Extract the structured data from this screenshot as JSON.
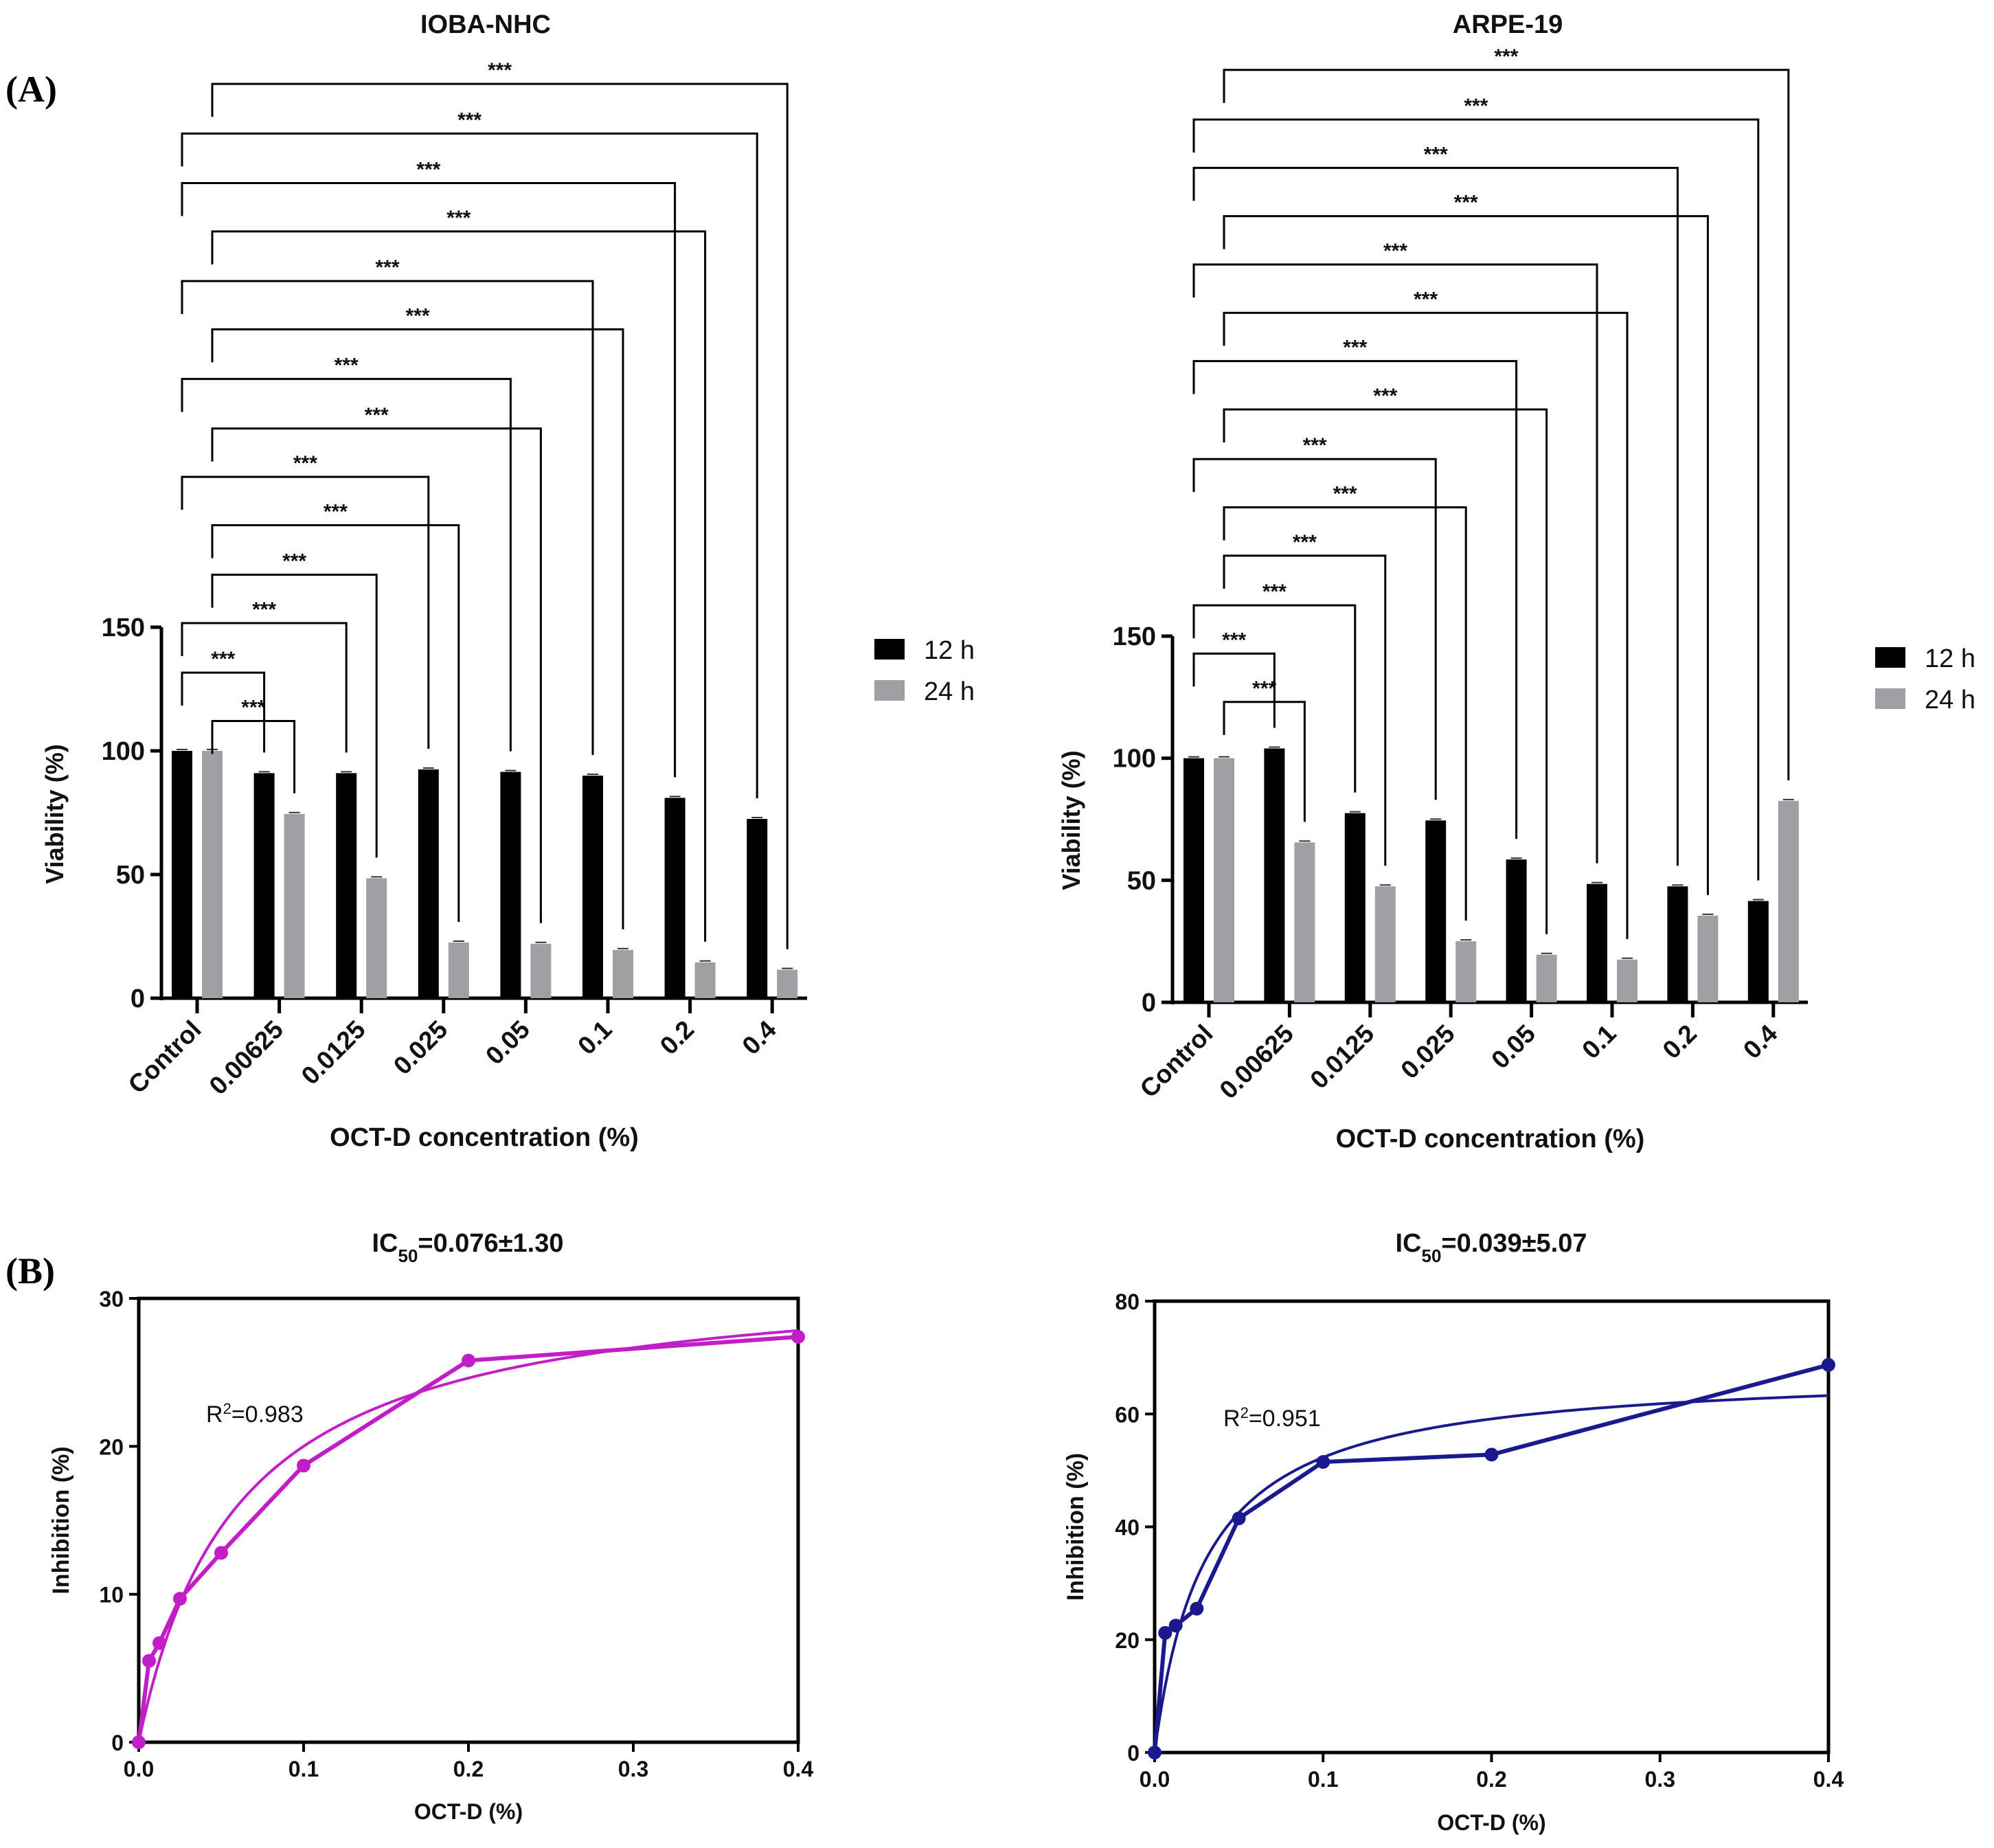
{
  "panel_labels": [
    "(A)",
    "(B)"
  ],
  "chart_data": [
    {
      "type": "bar",
      "title": "IOBA-NHC",
      "xlabel": "OCT-D concentration (%)",
      "ylabel": "Viability (%)",
      "ylim": [
        0,
        150
      ],
      "yticks": [
        "0",
        "50",
        "100",
        "150"
      ],
      "categories": [
        "Control",
        "0.00625",
        "0.0125",
        "0.025",
        "0.05",
        "0.1",
        "0.2",
        "0.4"
      ],
      "legend_position": "right",
      "series": [
        {
          "name": "12 h",
          "color": "#000000",
          "values": [
            100,
            91,
            91,
            92.5,
            91.5,
            90,
            81,
            72.5
          ]
        },
        {
          "name": "24 h",
          "color": "#a0a0a4",
          "values": [
            100,
            74.5,
            48.5,
            22.5,
            22,
            19.5,
            14.5,
            11.5
          ]
        }
      ],
      "significance_label": "***",
      "comparisons": [
        {
          "series": "24 h",
          "vs": "0.00625"
        },
        {
          "series": "12 h",
          "vs": "0.00625"
        },
        {
          "series": "12 h",
          "vs": "0.0125"
        },
        {
          "series": "24 h",
          "vs": "0.0125"
        },
        {
          "series": "24 h",
          "vs": "0.025"
        },
        {
          "series": "12 h",
          "vs": "0.025"
        },
        {
          "series": "24 h",
          "vs": "0.05"
        },
        {
          "series": "12 h",
          "vs": "0.05"
        },
        {
          "series": "24 h",
          "vs": "0.1"
        },
        {
          "series": "12 h",
          "vs": "0.1"
        },
        {
          "series": "24 h",
          "vs": "0.2"
        },
        {
          "series": "12 h",
          "vs": "0.2"
        },
        {
          "series": "12 h",
          "vs": "0.4"
        },
        {
          "series": "24 h",
          "vs": "0.4"
        }
      ]
    },
    {
      "type": "bar",
      "title": "ARPE-19",
      "xlabel": "OCT-D concentration (%)",
      "ylabel": "Viability (%)",
      "ylim": [
        0,
        150
      ],
      "yticks": [
        "0",
        "50",
        "100",
        "150"
      ],
      "categories": [
        "Control",
        "0.00625",
        "0.0125",
        "0.025",
        "0.05",
        "0.1",
        "0.2",
        "0.4"
      ],
      "legend_position": "right",
      "series": [
        {
          "name": "12 h",
          "color": "#000000",
          "values": [
            100,
            104,
            77.5,
            74.5,
            58.5,
            48.5,
            47.5,
            41.5
          ]
        },
        {
          "name": "24 h",
          "color": "#a0a0a4",
          "values": [
            100,
            65.5,
            47.5,
            25,
            19.5,
            17.5,
            35.5,
            82.5
          ]
        }
      ],
      "significance_label": "***",
      "comparisons": [
        {
          "series": "24 h",
          "vs": "0.00625"
        },
        {
          "series": "12 h",
          "vs": "0.00625"
        },
        {
          "series": "12 h",
          "vs": "0.0125"
        },
        {
          "series": "24 h",
          "vs": "0.0125"
        },
        {
          "series": "24 h",
          "vs": "0.025"
        },
        {
          "series": "12 h",
          "vs": "0.025"
        },
        {
          "series": "24 h",
          "vs": "0.05"
        },
        {
          "series": "12 h",
          "vs": "0.05"
        },
        {
          "series": "24 h",
          "vs": "0.1"
        },
        {
          "series": "12 h",
          "vs": "0.1"
        },
        {
          "series": "24 h",
          "vs": "0.2"
        },
        {
          "series": "12 h",
          "vs": "0.2"
        },
        {
          "series": "12 h",
          "vs": "0.4"
        },
        {
          "series": "24 h",
          "vs": "0.4"
        }
      ]
    },
    {
      "type": "line",
      "title_prefix": "IC",
      "title_sub": "50",
      "title_value": "=0.076±1.30",
      "xlabel": "OCT-D (%)",
      "ylabel": "Inhibition (%)",
      "xlim": [
        0,
        0.4
      ],
      "ylim": [
        0,
        30
      ],
      "xticks": [
        "0.0",
        "0.1",
        "0.2",
        "0.3",
        "0.4"
      ],
      "yticks": [
        "0",
        "10",
        "20",
        "30"
      ],
      "color": "#c21ec8",
      "x": [
        0,
        0.00625,
        0.0125,
        0.025,
        0.05,
        0.1,
        0.2,
        0.4
      ],
      "y": [
        0,
        5.5,
        6.7,
        9.7,
        12.8,
        18.7,
        25.8,
        27.4
      ],
      "r2_prefix": "R",
      "r2_sup": "2",
      "r2_value": "=0.983",
      "fit": {
        "model": "hyperbolic",
        "ymax": 32,
        "k": 0.06
      }
    },
    {
      "type": "line",
      "title_prefix": "IC",
      "title_sub": "50",
      "title_value": "=0.039±5.07",
      "xlabel": "OCT-D (%)",
      "ylabel": "Inhibition (%)",
      "xlim": [
        0,
        0.4
      ],
      "ylim": [
        0,
        80
      ],
      "xticks": [
        "0.0",
        "0.1",
        "0.2",
        "0.3",
        "0.4"
      ],
      "yticks": [
        "0",
        "20",
        "40",
        "60",
        "80"
      ],
      "color": "#1a1a8e",
      "x": [
        0,
        0.00625,
        0.0125,
        0.025,
        0.05,
        0.1,
        0.2,
        0.4
      ],
      "y": [
        0,
        21.2,
        22.5,
        25.5,
        41.5,
        51.5,
        52.8,
        68.7
      ],
      "r2_prefix": "R",
      "r2_sup": "2",
      "r2_value": "=0.951",
      "fit": {
        "model": "hyperbolic",
        "ymax": 68,
        "k": 0.03
      }
    }
  ]
}
